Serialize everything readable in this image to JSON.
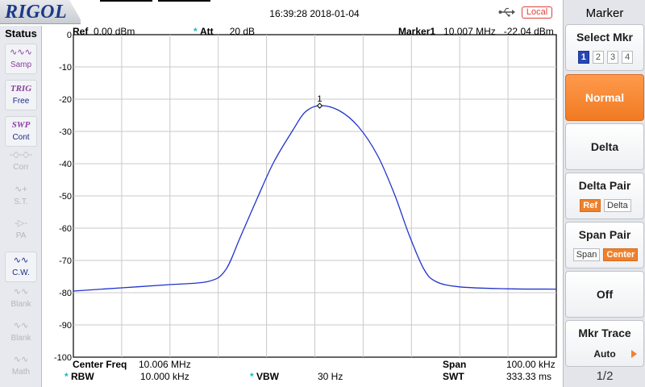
{
  "header": {
    "brand": "RIGOL",
    "datetime": "16:39:28 2018-01-04",
    "remote_mode": "Local",
    "usb_icon": "usb-icon"
  },
  "status_panel": {
    "title": "Status",
    "items": [
      {
        "icon": "wave-icon",
        "glyph": "∿∿∿",
        "label": "Samp",
        "state": "on"
      },
      {
        "icon": "trig-icon",
        "glyph": "TRIG",
        "label": "Free",
        "state": "on2"
      },
      {
        "icon": "sweep-icon",
        "glyph": "SWP",
        "label": "Cont",
        "state": "on2"
      },
      {
        "icon": "corr-icon",
        "glyph": "-◇-◇-",
        "label": "Corr",
        "state": "off"
      },
      {
        "icon": "sig-track-icon",
        "glyph": "∿+",
        "label": "S.T.",
        "state": "off"
      },
      {
        "icon": "preamp-icon",
        "glyph": "-▷-",
        "label": "PA",
        "state": "off"
      },
      {
        "icon": "clear-write-icon",
        "glyph": "∿∿",
        "label": "C.W.",
        "state": "cw"
      },
      {
        "icon": "blank-trace-icon",
        "glyph": "∿∿",
        "label": "Blank",
        "state": "off"
      },
      {
        "icon": "blank-trace-icon",
        "glyph": "∿∿",
        "label": "Blank",
        "state": "off"
      },
      {
        "icon": "math-trace-icon",
        "glyph": "∿∿",
        "label": "Math",
        "state": "off"
      }
    ]
  },
  "measurement": {
    "ref_label": "Ref",
    "ref_value": "0.00 dBm",
    "att_label": "Att",
    "att_value": "20 dB",
    "marker_label": "Marker1",
    "marker_freq": "10.007 MHz",
    "marker_level": "-22.04 dBm",
    "marker_number": "1",
    "center_label": "Center Freq",
    "center_value": "10.006 MHz",
    "span_label": "Span",
    "span_value": "100.00 kHz",
    "rbw_label": "RBW",
    "rbw_value": "10.000 kHz",
    "vbw_label": "VBW",
    "vbw_value": "30 Hz",
    "swt_label": "SWT",
    "swt_value": "333.33 ms",
    "accent_colors": {
      "trace": "#2233cc",
      "cyan": "#19b8c8",
      "grid": "#c9c9c9"
    }
  },
  "chart_data": {
    "type": "line",
    "title": "",
    "xlabel": "",
    "ylabel": "",
    "x_unit": "MHz",
    "y_unit": "dBm",
    "ylim": [
      -100,
      0
    ],
    "y_ticks": [
      0,
      -10,
      -20,
      -30,
      -40,
      -50,
      -60,
      -70,
      -80,
      -90,
      -100
    ],
    "xlim": [
      9.956,
      10.056
    ],
    "grid": true,
    "series": [
      {
        "x": [
          9.956,
          9.966,
          9.976,
          9.984,
          9.9875,
          9.9905,
          9.994,
          9.9975,
          10.0015,
          10.004,
          10.007,
          10.011,
          10.015,
          10.019,
          10.0225,
          10.0255,
          10.0285,
          10.031,
          10.036,
          10.046,
          10.056
        ],
        "values": [
          -79.5,
          -78.5,
          -77.5,
          -76.5,
          -73,
          -63,
          -51,
          -39.5,
          -29.5,
          -24,
          -22,
          -23.5,
          -28.5,
          -37.5,
          -49.5,
          -62,
          -72.5,
          -76.5,
          -78.2,
          -78.8,
          -78.9
        ]
      }
    ],
    "marker": {
      "label": "1",
      "x": 10.007,
      "y": -22.04
    }
  },
  "menu": {
    "title": "Marker",
    "select_mkr": {
      "label": "Select Mkr",
      "options": [
        "1",
        "2",
        "3",
        "4"
      ],
      "selected": "1"
    },
    "normal": "Normal",
    "delta": "Delta",
    "delta_pair": {
      "label": "Delta Pair",
      "options": [
        "Ref",
        "Delta"
      ],
      "selected": "Ref"
    },
    "span_pair": {
      "label": "Span Pair",
      "options": [
        "Span",
        "Center"
      ],
      "selected": "Center"
    },
    "off": "Off",
    "mkr_trace": {
      "label": "Mkr Trace",
      "value": "Auto"
    },
    "page": "1/2"
  }
}
